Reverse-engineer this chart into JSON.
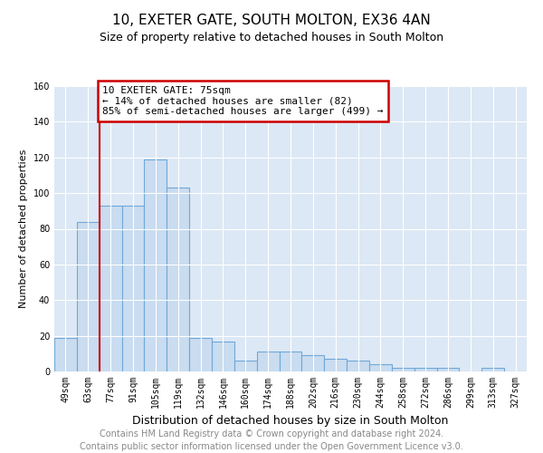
{
  "title": "10, EXETER GATE, SOUTH MOLTON, EX36 4AN",
  "subtitle": "Size of property relative to detached houses in South Molton",
  "xlabel": "Distribution of detached houses by size in South Molton",
  "ylabel": "Number of detached properties",
  "categories": [
    "49sqm",
    "63sqm",
    "77sqm",
    "91sqm",
    "105sqm",
    "119sqm",
    "132sqm",
    "146sqm",
    "160sqm",
    "174sqm",
    "188sqm",
    "202sqm",
    "216sqm",
    "230sqm",
    "244sqm",
    "258sqm",
    "272sqm",
    "286sqm",
    "299sqm",
    "313sqm",
    "327sqm"
  ],
  "values": [
    19,
    84,
    93,
    93,
    119,
    103,
    19,
    17,
    6,
    11,
    11,
    9,
    7,
    6,
    4,
    2,
    2,
    2,
    0,
    2,
    0
  ],
  "bar_color": "#c9dcf0",
  "bar_edge_color": "#6fa8d8",
  "vline_color": "#cc0000",
  "vline_index": 2,
  "annotation_line1": "10 EXETER GATE: 75sqm",
  "annotation_line2": "← 14% of detached houses are smaller (82)",
  "annotation_line3": "85% of semi-detached houses are larger (499) →",
  "annotation_box_color": "#cc0000",
  "ylim": [
    0,
    160
  ],
  "yticks": [
    0,
    20,
    40,
    60,
    80,
    100,
    120,
    140,
    160
  ],
  "plot_bg_color": "#dce8f5",
  "grid_color": "#ffffff",
  "title_fontsize": 11,
  "subtitle_fontsize": 9,
  "xlabel_fontsize": 9,
  "ylabel_fontsize": 8,
  "tick_fontsize": 7,
  "annot_fontsize": 8,
  "footer_fontsize": 7,
  "footer_line1": "Contains HM Land Registry data © Crown copyright and database right 2024.",
  "footer_line2": "Contains public sector information licensed under the Open Government Licence v3.0."
}
